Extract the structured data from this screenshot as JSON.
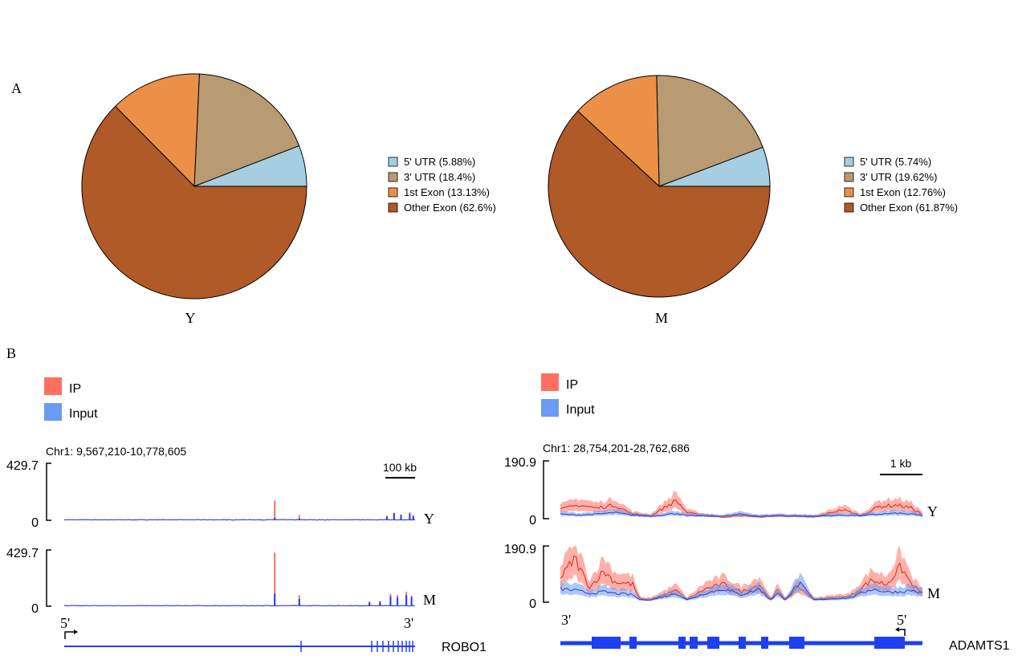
{
  "panels": {
    "a_label": "A",
    "b_label": "B"
  },
  "colors": {
    "utr5": "#a6cee3",
    "utr3": "#b89a73",
    "exon1": "#ec9047",
    "other_exon": "#b05a28",
    "ip": "#ff6f61",
    "input": "#6a9bf2",
    "gene": "#1f3ff2"
  },
  "chart_data": [
    {
      "type": "pie",
      "sample": "Y",
      "slices": [
        {
          "label": "5' UTR (5.88%)",
          "value": 5.88,
          "color_key": "utr5"
        },
        {
          "label": "3' UTR (18.4%)",
          "value": 18.4,
          "color_key": "utr3"
        },
        {
          "label": "1st Exon (13.13%)",
          "value": 13.13,
          "color_key": "exon1"
        },
        {
          "label": "Other Exon (62.6%)",
          "value": 62.6,
          "color_key": "other_exon"
        }
      ]
    },
    {
      "type": "pie",
      "sample": "M",
      "slices": [
        {
          "label": "5' UTR (5.74%)",
          "value": 5.74,
          "color_key": "utr5"
        },
        {
          "label": "3' UTR (19.62%)",
          "value": 19.62,
          "color_key": "utr3"
        },
        {
          "label": "1st Exon (12.76%)",
          "value": 12.76,
          "color_key": "exon1"
        },
        {
          "label": "Other Exon (61.87%)",
          "value": 61.87,
          "color_key": "other_exon"
        }
      ]
    },
    {
      "type": "area",
      "legend": [
        "IP",
        "Input"
      ],
      "region": "Chr1: 9,567,210-10,778,605",
      "scale_bar": "100 kb",
      "y_max_label": "429.7",
      "y_min_label": "0",
      "ylim": [
        0,
        429.7
      ],
      "tracks": [
        {
          "sample": "Y",
          "peaks": [
            [
              0.6,
              150,
              20
            ],
            [
              0.67,
              40,
              14
            ],
            [
              0.92,
              35,
              28
            ],
            [
              0.94,
              55,
              55
            ],
            [
              0.96,
              45,
              40
            ],
            [
              0.985,
              60,
              50
            ],
            [
              0.995,
              40,
              30
            ]
          ]
        },
        {
          "sample": "M",
          "peaks": [
            [
              0.6,
              410,
              95
            ],
            [
              0.67,
              85,
              55
            ],
            [
              0.87,
              35,
              30
            ],
            [
              0.9,
              40,
              35
            ],
            [
              0.93,
              95,
              75
            ],
            [
              0.95,
              85,
              65
            ],
            [
              0.975,
              110,
              85
            ],
            [
              0.99,
              80,
              70
            ]
          ]
        }
      ],
      "gene": {
        "name": "ROBO1",
        "left_end": "5'",
        "right_end": "3'"
      }
    },
    {
      "type": "area",
      "legend": [
        "IP",
        "Input"
      ],
      "region": "Chr1: 28,754,201-28,762,686",
      "scale_bar": "1 kb",
      "y_max_label": "190.9",
      "y_min_label": "0",
      "ylim": [
        0,
        190.9
      ],
      "tracks": [
        {
          "sample": "Y",
          "ip": [
            [
              0.0,
              30
            ],
            [
              0.05,
              45
            ],
            [
              0.1,
              35
            ],
            [
              0.15,
              45
            ],
            [
              0.2,
              15
            ],
            [
              0.25,
              10
            ],
            [
              0.32,
              60
            ],
            [
              0.35,
              20
            ],
            [
              0.4,
              10
            ],
            [
              0.45,
              5
            ],
            [
              0.5,
              10
            ],
            [
              0.55,
              5
            ],
            [
              0.6,
              10
            ],
            [
              0.7,
              5
            ],
            [
              0.78,
              30
            ],
            [
              0.83,
              10
            ],
            [
              0.88,
              40
            ],
            [
              0.93,
              45
            ],
            [
              0.97,
              35
            ],
            [
              1.0,
              15
            ]
          ],
          "input": [
            [
              0.0,
              15
            ],
            [
              0.05,
              12
            ],
            [
              0.1,
              15
            ],
            [
              0.15,
              20
            ],
            [
              0.2,
              12
            ],
            [
              0.25,
              8
            ],
            [
              0.32,
              18
            ],
            [
              0.35,
              10
            ],
            [
              0.4,
              10
            ],
            [
              0.45,
              8
            ],
            [
              0.5,
              15
            ],
            [
              0.55,
              8
            ],
            [
              0.6,
              10
            ],
            [
              0.7,
              8
            ],
            [
              0.78,
              12
            ],
            [
              0.83,
              10
            ],
            [
              0.88,
              15
            ],
            [
              0.93,
              18
            ],
            [
              0.97,
              15
            ],
            [
              1.0,
              10
            ]
          ]
        },
        {
          "sample": "M",
          "ip": [
            [
              0.0,
              80
            ],
            [
              0.04,
              150
            ],
            [
              0.08,
              50
            ],
            [
              0.12,
              105
            ],
            [
              0.15,
              70
            ],
            [
              0.2,
              60
            ],
            [
              0.22,
              10
            ],
            [
              0.25,
              10
            ],
            [
              0.32,
              40
            ],
            [
              0.35,
              10
            ],
            [
              0.4,
              45
            ],
            [
              0.45,
              60
            ],
            [
              0.5,
              35
            ],
            [
              0.55,
              60
            ],
            [
              0.58,
              10
            ],
            [
              0.6,
              40
            ],
            [
              0.62,
              10
            ],
            [
              0.66,
              50
            ],
            [
              0.7,
              10
            ],
            [
              0.8,
              20
            ],
            [
              0.86,
              75
            ],
            [
              0.9,
              60
            ],
            [
              0.94,
              120
            ],
            [
              0.97,
              60
            ],
            [
              1.0,
              30
            ]
          ],
          "input": [
            [
              0.0,
              45
            ],
            [
              0.04,
              40
            ],
            [
              0.08,
              30
            ],
            [
              0.12,
              35
            ],
            [
              0.15,
              30
            ],
            [
              0.2,
              25
            ],
            [
              0.22,
              8
            ],
            [
              0.25,
              8
            ],
            [
              0.32,
              30
            ],
            [
              0.35,
              8
            ],
            [
              0.4,
              30
            ],
            [
              0.45,
              45
            ],
            [
              0.5,
              25
            ],
            [
              0.55,
              45
            ],
            [
              0.58,
              8
            ],
            [
              0.6,
              30
            ],
            [
              0.62,
              8
            ],
            [
              0.66,
              65
            ],
            [
              0.7,
              8
            ],
            [
              0.8,
              15
            ],
            [
              0.86,
              45
            ],
            [
              0.9,
              35
            ],
            [
              0.94,
              35
            ],
            [
              0.97,
              40
            ],
            [
              1.0,
              30
            ]
          ]
        }
      ],
      "gene": {
        "name": "ADAMTS1",
        "left_end": "3'",
        "right_end": "5'"
      }
    }
  ]
}
